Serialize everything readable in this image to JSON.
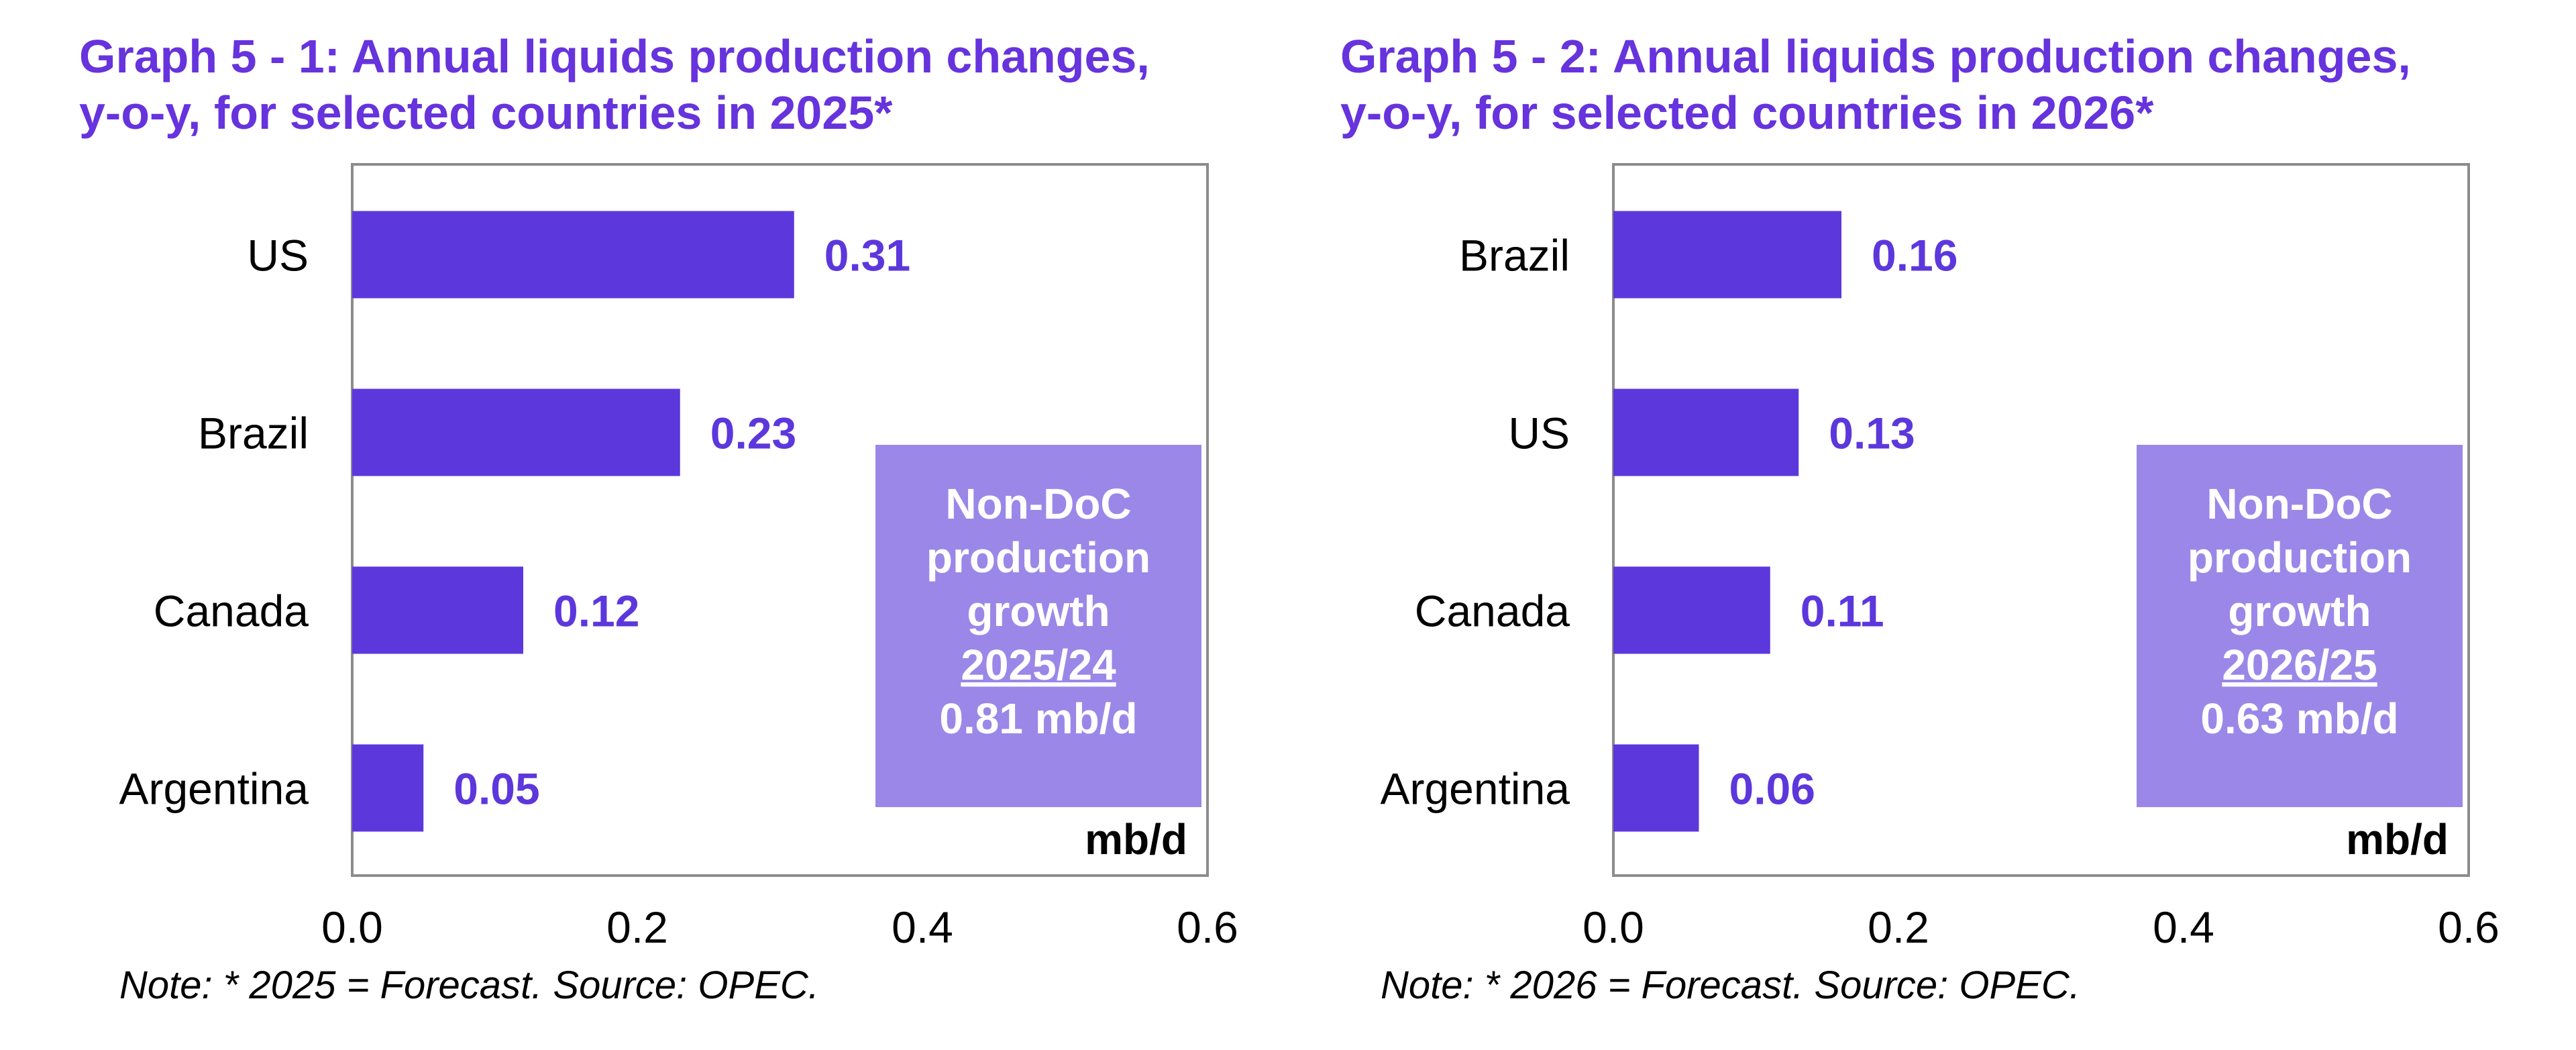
{
  "colors": {
    "title": "#6633dd",
    "bar": "#5c37dc",
    "value_label": "#5c37dc",
    "callout_box": "#9b87e8",
    "callout_text": "#ffffff",
    "frame": "#8c8c8c"
  },
  "chart_data": [
    {
      "type": "bar",
      "orientation": "horizontal",
      "title_lines": [
        "Graph 5 - 1: Annual liquids production changes,",
        "y-o-y, for selected countries in 2025*"
      ],
      "categories": [
        "US",
        "Brazil",
        "Canada",
        "Argentina"
      ],
      "values": [
        0.31,
        0.23,
        0.12,
        0.05
      ],
      "value_labels": [
        "0.31",
        "0.23",
        "0.12",
        "0.05"
      ],
      "xlim": [
        0,
        0.6
      ],
      "x_ticks": [
        "0.0",
        "0.2",
        "0.4",
        "0.6"
      ],
      "unit_label": "mb/d",
      "grid": false,
      "legend": "none",
      "callout": {
        "lines": [
          "Non-DoC",
          "production",
          "growth"
        ],
        "period": "2025/24",
        "value": "0.81 mb/d"
      },
      "note": "Note: * 2025 = Forecast. Source: OPEC."
    },
    {
      "type": "bar",
      "orientation": "horizontal",
      "title_lines": [
        "Graph 5 - 2: Annual liquids production changes,",
        "y-o-y, for selected countries in 2026*"
      ],
      "categories": [
        "Brazil",
        "US",
        "Canada",
        "Argentina"
      ],
      "values": [
        0.16,
        0.13,
        0.11,
        0.06
      ],
      "value_labels": [
        "0.16",
        "0.13",
        "0.11",
        "0.06"
      ],
      "xlim": [
        0,
        0.6
      ],
      "x_ticks": [
        "0.0",
        "0.2",
        "0.4",
        "0.6"
      ],
      "unit_label": "mb/d",
      "grid": false,
      "legend": "none",
      "callout": {
        "lines": [
          "Non-DoC",
          "production",
          "growth"
        ],
        "period": "2026/25",
        "value": "0.63 mb/d"
      },
      "note": "Note: * 2026 = Forecast. Source: OPEC."
    }
  ]
}
